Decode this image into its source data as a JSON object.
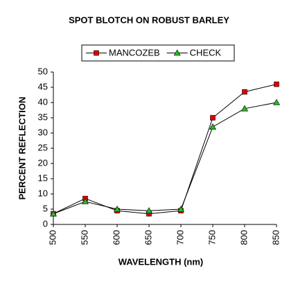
{
  "chart_data": {
    "type": "line",
    "title": "SPOT BLOTCH ON ROBUST BARLEY",
    "x_label": "WAVELENGTH (nm)",
    "y_label": "PERCENT REFLECTION",
    "x": [
      500,
      550,
      600,
      650,
      700,
      750,
      800,
      850
    ],
    "series": [
      {
        "name": "MANCOZEB",
        "color": "#e00000",
        "marker": "square",
        "values": [
          3.5,
          8.5,
          4.5,
          3.5,
          4.5,
          35,
          43.5,
          46
        ]
      },
      {
        "name": "CHECK",
        "color": "#22bb22",
        "marker": "triangle",
        "values": [
          3.5,
          7.5,
          5,
          4.5,
          5,
          32,
          38,
          40
        ]
      }
    ],
    "line_color": "#000000",
    "xlim": [
      500,
      850
    ],
    "xticks": [
      500,
      550,
      600,
      650,
      700,
      750,
      800,
      850
    ],
    "ylim": [
      0,
      50
    ],
    "yticks": [
      0,
      5,
      10,
      15,
      20,
      25,
      30,
      35,
      40,
      45,
      50
    ],
    "grid": false,
    "legend": "top"
  }
}
